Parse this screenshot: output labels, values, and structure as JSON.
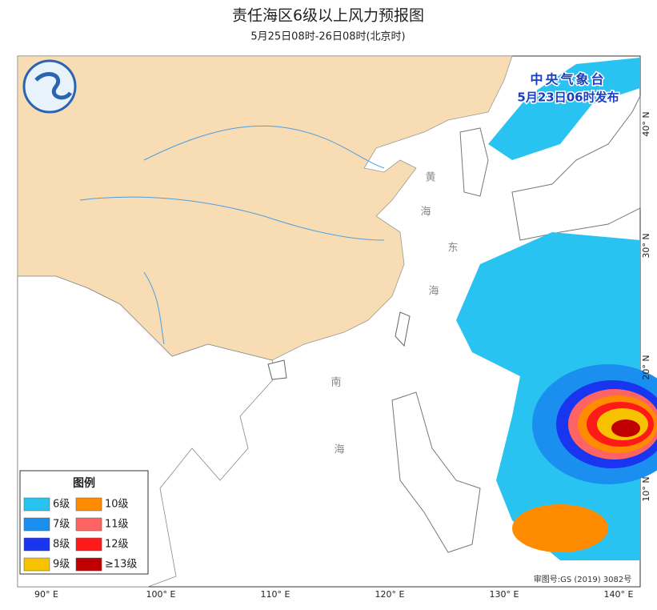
{
  "header": {
    "title": "责任海区6级以上风力预报图",
    "subtitle": "5月25日08时-26日08时(北京时)"
  },
  "issuer": {
    "name": "中央气象台",
    "time": "5月23日06时发布"
  },
  "legend": {
    "title": "图例",
    "items": [
      {
        "label": "6级",
        "color": "#29c3f2"
      },
      {
        "label": "10级",
        "color": "#ff8c00"
      },
      {
        "label": "7级",
        "color": "#1a8fef"
      },
      {
        "label": "11级",
        "color": "#ff6464"
      },
      {
        "label": "8级",
        "color": "#1a35f0"
      },
      {
        "label": "12级",
        "color": "#ff1a1a"
      },
      {
        "label": "9级",
        "color": "#f7c300"
      },
      {
        "label": "≥13级",
        "color": "#c00000"
      }
    ]
  },
  "axes": {
    "longitude": [
      "90° E",
      "100° E",
      "110° E",
      "120° E",
      "130° E",
      "140° E"
    ],
    "latitude": [
      "40° N",
      "30° N",
      "20° N",
      "10° N"
    ]
  },
  "sea_labels": [
    "黄",
    "海",
    "东",
    "海",
    "南",
    "海"
  ],
  "review_number": "审图号:GS (2019) 3082号"
}
